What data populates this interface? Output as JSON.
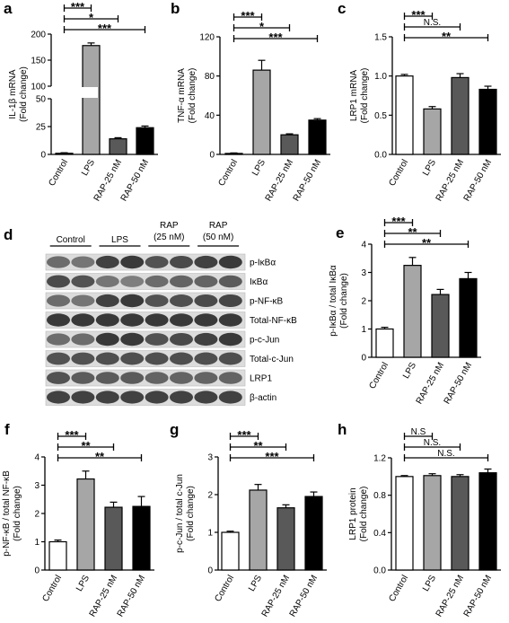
{
  "categories": [
    "Control",
    "LPS",
    "RAP-25 nM",
    "RAP-50 nM"
  ],
  "bar_colors": [
    "#ffffff",
    "#a6a6a6",
    "#595959",
    "#000000"
  ],
  "chart_data": [
    {
      "id": "a",
      "type": "bar",
      "panel": "a",
      "ylabel": [
        "IL-1β mRNA",
        "(Fold change)"
      ],
      "values": [
        1,
        178,
        14,
        24
      ],
      "errors": [
        0.5,
        5,
        1,
        1.5
      ],
      "broken_axis": true,
      "lower_range": [
        0,
        50
      ],
      "upper_range": [
        100,
        200
      ],
      "ticks_lower": [
        "0",
        "25",
        "50"
      ],
      "ticks_upper": [
        "100",
        "150",
        "200"
      ],
      "comparisons": [
        {
          "to": 1,
          "label": "***"
        },
        {
          "to": 2,
          "label": "*"
        },
        {
          "to": 3,
          "label": "***"
        }
      ]
    },
    {
      "id": "b",
      "type": "bar",
      "panel": "b",
      "ylabel": [
        "TNF-α mRNA",
        "(Fold change)"
      ],
      "values": [
        1,
        86,
        20,
        35
      ],
      "errors": [
        0.5,
        10,
        1,
        1.5
      ],
      "ylim": [
        0,
        120
      ],
      "ticks": [
        "0",
        "40",
        "80",
        "120"
      ],
      "comparisons": [
        {
          "to": 1,
          "label": "***"
        },
        {
          "to": 2,
          "label": "*"
        },
        {
          "to": 3,
          "label": "***"
        }
      ]
    },
    {
      "id": "c",
      "type": "bar",
      "panel": "c",
      "ylabel": [
        "LRP1 mRNA",
        "(Fold change)"
      ],
      "values": [
        1.0,
        0.58,
        0.98,
        0.83
      ],
      "errors": [
        0.02,
        0.03,
        0.05,
        0.04
      ],
      "ylim": [
        0,
        1.5
      ],
      "ticks": [
        "0.0",
        "0.5",
        "1.0",
        "1.5"
      ],
      "comparisons": [
        {
          "to": 1,
          "label": "***"
        },
        {
          "to": 2,
          "label": "N.S."
        },
        {
          "to": 3,
          "label": "**"
        }
      ]
    },
    {
      "id": "e",
      "type": "bar",
      "panel": "e",
      "ylabel": [
        "p-IκBα / total IκBα",
        "(Fold change)"
      ],
      "values": [
        1.0,
        3.25,
        2.22,
        2.78
      ],
      "errors": [
        0.06,
        0.28,
        0.18,
        0.22
      ],
      "ylim": [
        0,
        4
      ],
      "ticks": [
        "0",
        "1",
        "2",
        "3",
        "4"
      ],
      "comparisons": [
        {
          "to": 1,
          "label": "***"
        },
        {
          "to": 2,
          "label": "**"
        },
        {
          "to": 3,
          "label": "**"
        }
      ]
    },
    {
      "id": "f",
      "type": "bar",
      "panel": "f",
      "ylabel": [
        "p-NF-κB / total NF-κB",
        "(Fold change)"
      ],
      "values": [
        1.0,
        3.22,
        2.22,
        2.25
      ],
      "errors": [
        0.06,
        0.28,
        0.18,
        0.35
      ],
      "ylim": [
        0,
        4
      ],
      "ticks": [
        "0",
        "1",
        "2",
        "3",
        "4"
      ],
      "comparisons": [
        {
          "to": 1,
          "label": "***"
        },
        {
          "to": 2,
          "label": "**"
        },
        {
          "to": 3,
          "label": "**"
        }
      ]
    },
    {
      "id": "g",
      "type": "bar",
      "panel": "g",
      "ylabel": [
        "p-c-Jun / total c-Jun",
        "(Fold change)"
      ],
      "values": [
        1.0,
        2.12,
        1.65,
        1.95
      ],
      "errors": [
        0.03,
        0.15,
        0.08,
        0.12
      ],
      "ylim": [
        0,
        3
      ],
      "ticks": [
        "0",
        "1",
        "2",
        "3"
      ],
      "comparisons": [
        {
          "to": 1,
          "label": "***"
        },
        {
          "to": 2,
          "label": "**"
        },
        {
          "to": 3,
          "label": "***"
        }
      ]
    },
    {
      "id": "h",
      "type": "bar",
      "panel": "h",
      "ylabel": [
        "LRP1 protein",
        "(Fold change)"
      ],
      "values": [
        1.0,
        1.01,
        1.0,
        1.04
      ],
      "errors": [
        0.01,
        0.02,
        0.02,
        0.04
      ],
      "ylim": [
        0,
        1.2
      ],
      "ticks": [
        "0.0",
        "0.4",
        "0.8",
        "1.2"
      ],
      "comparisons": [
        {
          "to": 1,
          "label": "N.S"
        },
        {
          "to": 2,
          "label": "N.S."
        },
        {
          "to": 3,
          "label": "N.S."
        }
      ]
    }
  ],
  "western_blot": {
    "panel": "d",
    "groups": [
      "Control",
      "LPS",
      "RAP",
      "RAP"
    ],
    "group_sub": [
      "",
      "",
      "(25 nM)",
      "(50 nM)"
    ],
    "rows": [
      "p-IκBα",
      "IκBα",
      "p-NF-κB",
      "Total-NF-κB",
      "p-c-Jun",
      "Total-c-Jun",
      "LRP1",
      "β-actin"
    ],
    "band_intensity": [
      [
        0.55,
        0.5,
        0.8,
        0.85,
        0.7,
        0.75,
        0.8,
        0.85
      ],
      [
        0.75,
        0.7,
        0.5,
        0.45,
        0.55,
        0.6,
        0.6,
        0.65
      ],
      [
        0.55,
        0.5,
        0.8,
        0.85,
        0.7,
        0.72,
        0.75,
        0.78
      ],
      [
        0.85,
        0.85,
        0.85,
        0.85,
        0.85,
        0.85,
        0.85,
        0.85
      ],
      [
        0.55,
        0.55,
        0.85,
        0.85,
        0.7,
        0.75,
        0.8,
        0.85
      ],
      [
        0.7,
        0.7,
        0.72,
        0.72,
        0.72,
        0.72,
        0.72,
        0.72
      ],
      [
        0.7,
        0.65,
        0.65,
        0.65,
        0.6,
        0.6,
        0.6,
        0.6
      ],
      [
        0.8,
        0.8,
        0.8,
        0.8,
        0.8,
        0.8,
        0.8,
        0.8
      ]
    ]
  }
}
